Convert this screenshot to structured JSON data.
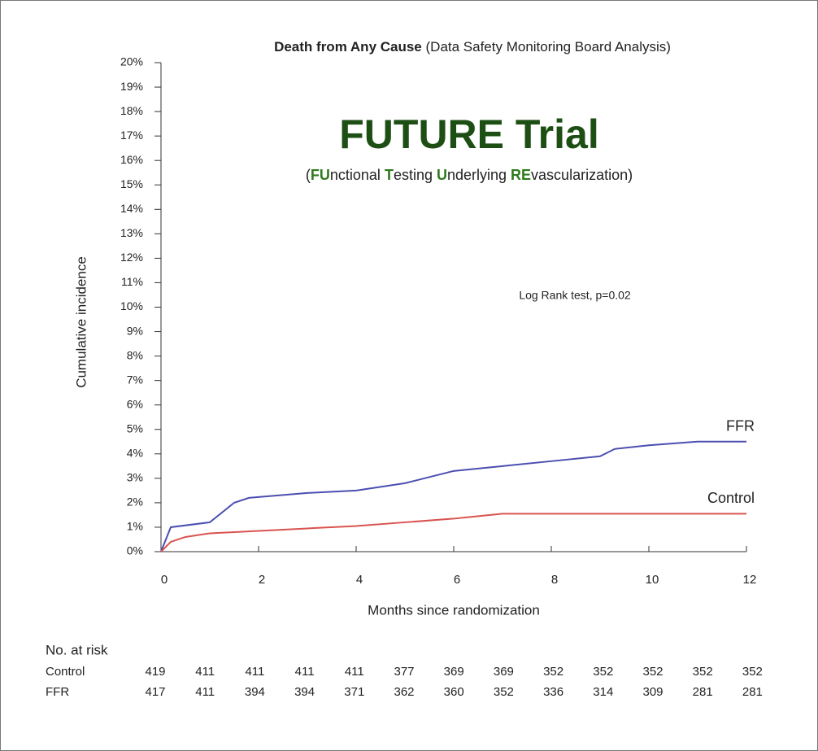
{
  "chart_data": {
    "type": "line",
    "title_bold": "Death from Any Cause",
    "title_rest": "(Data Safety Monitoring Board Analysis)",
    "headline": "FUTURE Trial",
    "subtitle_parts": [
      "(",
      "FU",
      "nctional ",
      "T",
      "esting ",
      "U",
      "nderlying ",
      "RE",
      "vascularization)"
    ],
    "annotation": "Log Rank test, p=0.02",
    "xlabel": "Months since randomization",
    "ylabel": "Cumulative incidence",
    "xlim": [
      0,
      12
    ],
    "xticks": [
      0,
      2,
      4,
      6,
      8,
      10,
      12
    ],
    "ylim": [
      0,
      20
    ],
    "yticks": [
      {
        "value": 0,
        "label": "0%"
      },
      {
        "value": 1,
        "label": "1%"
      },
      {
        "value": 2,
        "label": "2%"
      },
      {
        "value": 3,
        "label": "3%"
      },
      {
        "value": 4,
        "label": "4%"
      },
      {
        "value": 5,
        "label": "5%"
      },
      {
        "value": 6,
        "label": "6%"
      },
      {
        "value": 7,
        "label": "7%"
      },
      {
        "value": 8,
        "label": "8%"
      },
      {
        "value": 9,
        "label": "9%"
      },
      {
        "value": 10,
        "label": "10%"
      },
      {
        "value": 11,
        "label": "11%"
      },
      {
        "value": 12,
        "label": "12%"
      },
      {
        "value": 13,
        "label": "13%"
      },
      {
        "value": 14,
        "label": "14%"
      },
      {
        "value": 15,
        "label": "15%"
      },
      {
        "value": 16,
        "label": "16%"
      },
      {
        "value": 17,
        "label": "17%"
      },
      {
        "value": 18,
        "label": "18%"
      },
      {
        "value": 19,
        "label": "19%"
      },
      {
        "value": 20,
        "label": "20%"
      }
    ],
    "series": [
      {
        "name": "FFR",
        "color": "#4b4fb0",
        "x": [
          0,
          0.2,
          1,
          1.5,
          1.8,
          3,
          4,
          5,
          6,
          7,
          8,
          9,
          9.3,
          10,
          11,
          12
        ],
        "values": [
          0,
          1.0,
          1.2,
          2.0,
          2.2,
          2.4,
          2.5,
          2.8,
          3.3,
          3.5,
          3.7,
          3.9,
          4.2,
          4.35,
          4.5,
          4.5
        ]
      },
      {
        "name": "Control",
        "color": "#d9534f",
        "x": [
          0,
          0.2,
          0.5,
          1,
          2,
          3,
          4,
          5,
          6,
          7,
          8,
          12
        ],
        "values": [
          0,
          0.4,
          0.6,
          0.75,
          0.85,
          0.95,
          1.05,
          1.2,
          1.35,
          1.55,
          1.55,
          1.55
        ]
      }
    ],
    "at_risk": {
      "title": "No. at risk",
      "rows": [
        {
          "label": "Control",
          "counts": [
            "419",
            "411",
            "411",
            "411",
            "411",
            "377",
            "369",
            "369",
            "352",
            "352",
            "352",
            "352",
            "352"
          ]
        },
        {
          "label": "FFR",
          "counts": [
            "417",
            "411",
            "394",
            "394",
            "371",
            "362",
            "360",
            "352",
            "336",
            "314",
            "309",
            "281",
            "281"
          ]
        }
      ]
    }
  }
}
